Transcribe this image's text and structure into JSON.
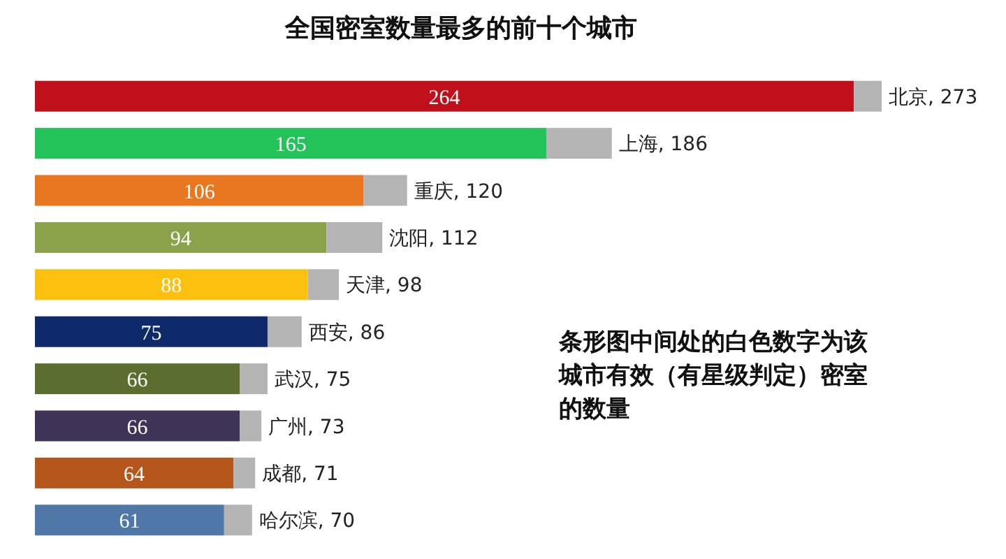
{
  "chart_data": {
    "type": "bar",
    "orientation": "horizontal",
    "stacked": true,
    "title": "全国密室数量最多的前十个城市",
    "categories": [
      null,
      null,
      null,
      null,
      null,
      null,
      null,
      null,
      null,
      null
    ],
    "series": [
      {
        "colors": [
          "#c0101c",
          "#23c35a",
          "#e8771f",
          "#8aa24a",
          "#fdc00f",
          "#0f2a6b",
          "#5b6e2f",
          "#3f3457",
          "#b5561c",
          "#4f78a9"
        ],
        "values": [
          264,
          165,
          106,
          94,
          88,
          75,
          66,
          66,
          64,
          61
        ],
        "value_labels": [
          "264",
          "165",
          "106",
          "94",
          "88",
          "75",
          "66",
          "66",
          "64",
          "61"
        ]
      },
      {
        "color": "#b4b4b4",
        "values": [
          9,
          21,
          14,
          18,
          10,
          11,
          9,
          7,
          7,
          9
        ]
      }
    ],
    "totals": [
      "北京, 273",
      "上海, 186",
      "重庆, 120",
      "沈阳, 112",
      "天津, 98",
      "西安, 86",
      "武汉, 75",
      "广州, 73",
      "成都, 71",
      "哈尔滨, 70"
    ],
    "annotations": [
      "条形图中间处的白色数字为该城市有效（有星级判定）密室的数量"
    ]
  }
}
